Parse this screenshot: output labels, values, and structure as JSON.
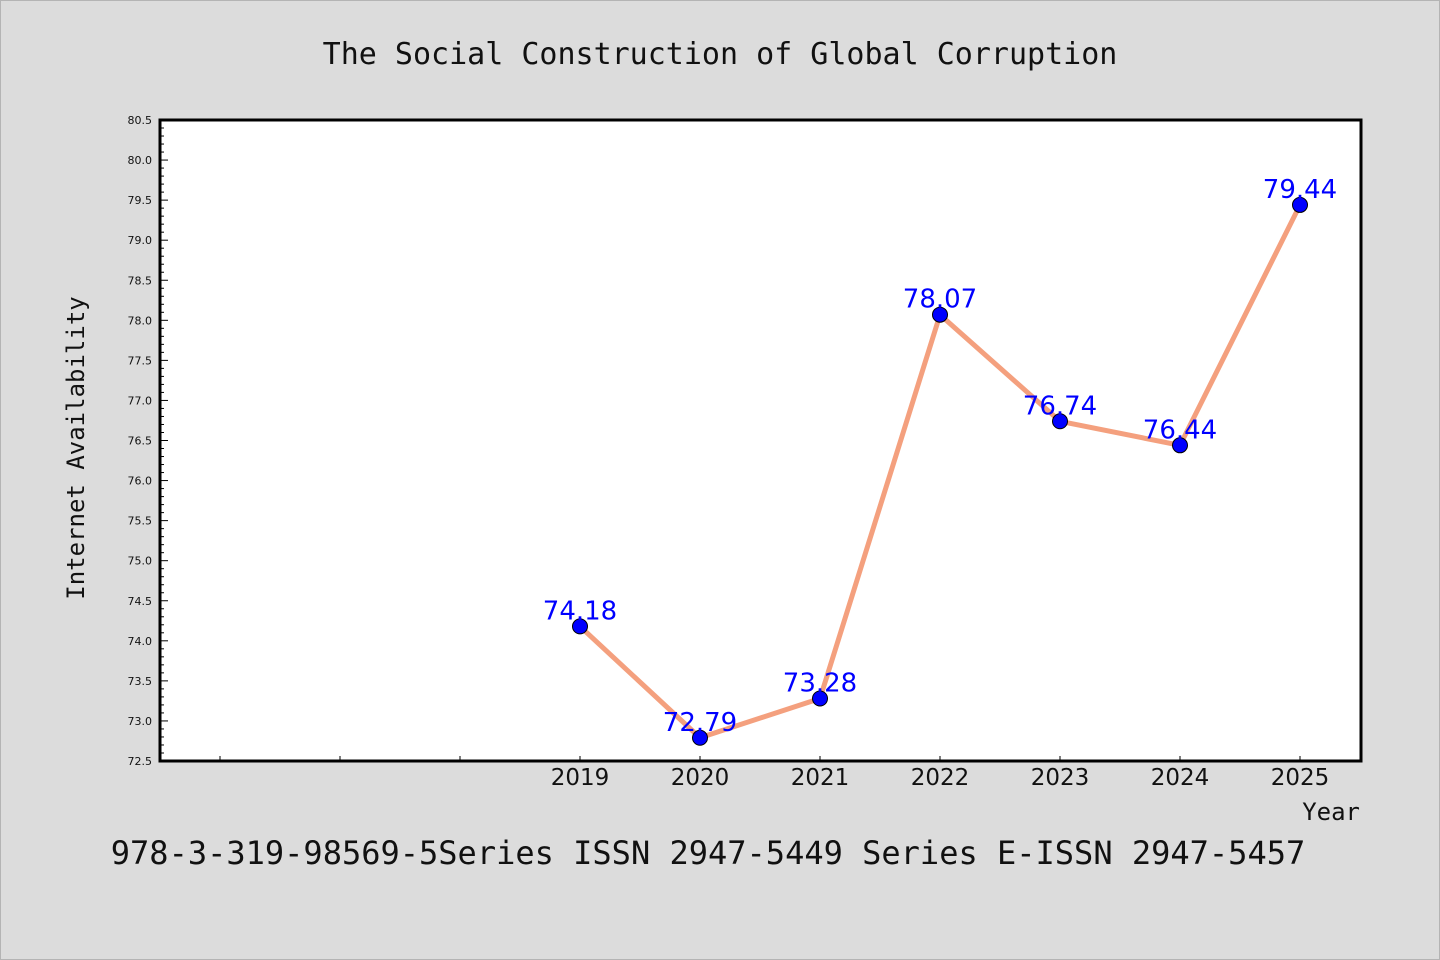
{
  "chart_data": {
    "type": "line",
    "title": "The Social Construction of Global Corruption",
    "xlabel": "Year",
    "ylabel": "Internet Availability",
    "x": [
      "2019",
      "2020",
      "2021",
      "2022",
      "2023",
      "2024",
      "2025"
    ],
    "series": [
      {
        "values": [
          74.18,
          72.79,
          73.28,
          78.07,
          76.74,
          76.44,
          79.44
        ],
        "labels": [
          "74.18",
          "72.79",
          "73.28",
          "78.07",
          "76.74",
          "76.44",
          "79.44"
        ],
        "line_color": "#f4a07e",
        "marker_color": "#0000ff"
      }
    ],
    "ylim": [
      72.5,
      80.5
    ],
    "ytick_step": 0.5,
    "yticks": [
      "72.5",
      "73.0",
      "73.5",
      "74.0",
      "74.5",
      "75.0",
      "75.5",
      "76.0",
      "76.5",
      "77.0",
      "77.5",
      "78.0",
      "78.5",
      "79.0",
      "79.5",
      "80.0",
      "80.5"
    ],
    "grid": false,
    "legend": "none"
  },
  "footer": "978-3-319-98569-5Series ISSN 2947-5449 Series E-ISSN 2947-5457",
  "colors": {
    "background": "#dcdcdc",
    "plot_area": "#ffffff",
    "line": "#f4a07e",
    "marker": "#0000ff",
    "data_label": "#0000ff"
  }
}
